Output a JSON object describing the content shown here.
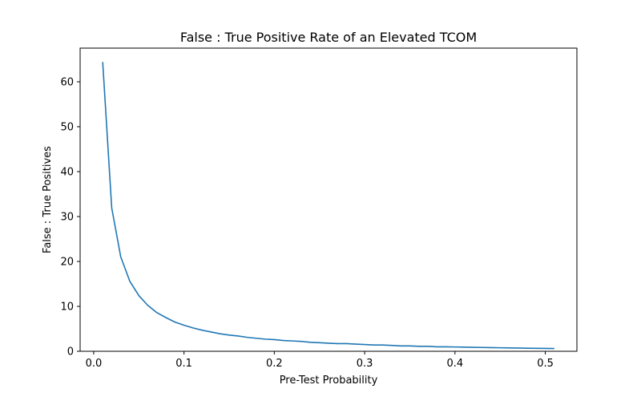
{
  "chart_data": {
    "type": "line",
    "title": "False : True Positive Rate of an Elevated TCOM",
    "xlabel": "Pre-Test Probability",
    "ylabel": "False : True Positives",
    "xlim": [
      -0.015,
      0.535
    ],
    "ylim": [
      0,
      67.5
    ],
    "grid": false,
    "x_ticks": [
      0.0,
      0.1,
      0.2,
      0.3,
      0.4,
      0.5
    ],
    "x_tick_labels": [
      "0.0",
      "0.1",
      "0.2",
      "0.3",
      "0.4",
      "0.5"
    ],
    "y_ticks": [
      0,
      10,
      20,
      30,
      40,
      50,
      60
    ],
    "y_tick_labels": [
      "0",
      "10",
      "20",
      "30",
      "40",
      "50",
      "60"
    ],
    "series": [
      {
        "color": "#1f77b4",
        "x": [
          0.01,
          0.02,
          0.03,
          0.04,
          0.05,
          0.06,
          0.07,
          0.08,
          0.09,
          0.1,
          0.11,
          0.12,
          0.13,
          0.14,
          0.15,
          0.16,
          0.17,
          0.18,
          0.19,
          0.2,
          0.21,
          0.22,
          0.23,
          0.24,
          0.25,
          0.26,
          0.27,
          0.28,
          0.29,
          0.3,
          0.31,
          0.32,
          0.33,
          0.34,
          0.35,
          0.36,
          0.37,
          0.38,
          0.39,
          0.4,
          0.41,
          0.42,
          0.43,
          0.44,
          0.45,
          0.46,
          0.47,
          0.48,
          0.49,
          0.5,
          0.51
        ],
        "values": [
          64.4,
          31.9,
          21.0,
          15.6,
          12.4,
          10.2,
          8.6,
          7.5,
          6.5,
          5.8,
          5.2,
          4.7,
          4.3,
          3.9,
          3.6,
          3.4,
          3.1,
          2.9,
          2.7,
          2.6,
          2.4,
          2.3,
          2.2,
          2.0,
          1.9,
          1.8,
          1.7,
          1.7,
          1.6,
          1.5,
          1.4,
          1.4,
          1.3,
          1.2,
          1.2,
          1.1,
          1.1,
          1.0,
          1.0,
          0.96,
          0.92,
          0.88,
          0.85,
          0.81,
          0.78,
          0.75,
          0.72,
          0.69,
          0.66,
          0.64,
          0.61
        ]
      }
    ]
  }
}
